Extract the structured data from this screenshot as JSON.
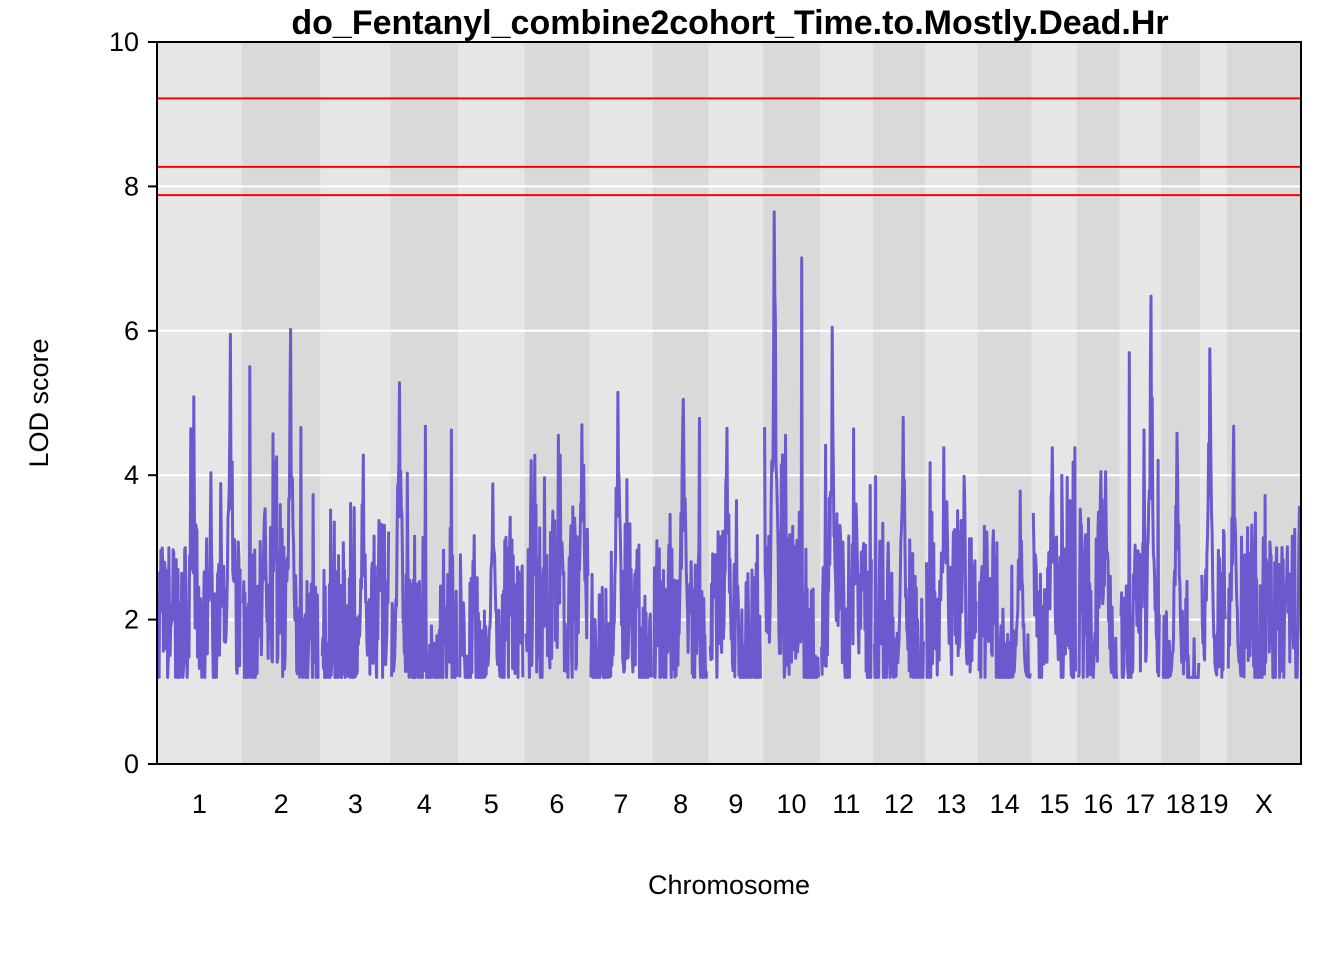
{
  "chart_data": {
    "type": "line",
    "title": "do_Fentanyl_combine2cohort_Time.to.Mostly.Dead.Hr",
    "xlabel": "Chromosome",
    "ylabel": "LOD score",
    "ylim": [
      0,
      10
    ],
    "yticks": [
      0,
      2,
      4,
      6,
      8,
      10
    ],
    "grid": true,
    "series_color": "#6a5acd",
    "threshold_color": "#ff0000",
    "thresholds": [
      9.22,
      8.27,
      7.88
    ],
    "chromosomes": [
      {
        "label": "1",
        "length": 195,
        "peak": 5.95,
        "peak_pos": 0.88
      },
      {
        "label": "2",
        "length": 182,
        "peak": 6.02,
        "peak_pos": 0.62
      },
      {
        "label": "3",
        "length": 160,
        "peak": 4.28,
        "peak_pos": 0.62
      },
      {
        "label": "4",
        "length": 157,
        "peak": 5.28,
        "peak_pos": 0.12
      },
      {
        "label": "5",
        "length": 152,
        "peak": 3.88,
        "peak_pos": 0.52
      },
      {
        "label": "6",
        "length": 150,
        "peak": 4.7,
        "peak_pos": 0.9
      },
      {
        "label": "7",
        "length": 145,
        "peak": 5.15,
        "peak_pos": 0.45
      },
      {
        "label": "8",
        "length": 130,
        "peak": 5.05,
        "peak_pos": 0.55
      },
      {
        "label": "9",
        "length": 125,
        "peak": 4.65,
        "peak_pos": 0.32
      },
      {
        "label": "10",
        "length": 131,
        "peak": 7.65,
        "peak_pos": 0.18
      },
      {
        "label": "11",
        "length": 122,
        "peak": 6.05,
        "peak_pos": 0.22
      },
      {
        "label": "12",
        "length": 120,
        "peak": 4.8,
        "peak_pos": 0.58
      },
      {
        "label": "13",
        "length": 121,
        "peak": 4.38,
        "peak_pos": 0.35
      },
      {
        "label": "14",
        "length": 125,
        "peak": 3.78,
        "peak_pos": 0.8
      },
      {
        "label": "15",
        "length": 104,
        "peak": 4.38,
        "peak_pos": 0.45
      },
      {
        "label": "16",
        "length": 98,
        "peak": 4.05,
        "peak_pos": 0.68
      },
      {
        "label": "17",
        "length": 95,
        "peak": 6.48,
        "peak_pos": 0.78
      },
      {
        "label": "18",
        "length": 91,
        "peak": 4.58,
        "peak_pos": 0.4
      },
      {
        "label": "19",
        "length": 61,
        "peak": 5.75,
        "peak_pos": 0.35
      },
      {
        "label": "X",
        "length": 171,
        "peak": 4.68,
        "peak_pos": 0.08
      }
    ]
  }
}
